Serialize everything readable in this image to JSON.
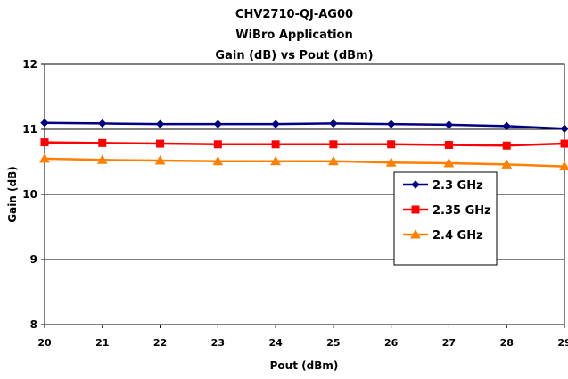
{
  "chart_data": {
    "type": "line",
    "title_lines": [
      "CHV2710-QJ-AG00",
      "WiBro Application",
      "Gain (dB) vs Pout (dBm)"
    ],
    "xlabel": "Pout (dBm)",
    "ylabel": "Gain (dB)",
    "x": [
      20,
      21,
      22,
      23,
      24,
      25,
      26,
      27,
      28,
      29
    ],
    "xlim": [
      20,
      29
    ],
    "ylim": [
      8,
      12
    ],
    "x_ticks": [
      "20",
      "21",
      "22",
      "23",
      "24",
      "25",
      "26",
      "27",
      "28",
      "29"
    ],
    "y_ticks": [
      "8",
      "9",
      "10",
      "11",
      "12"
    ],
    "grid": "horizontal major gridlines",
    "legend_position": "right-center inside plot",
    "series": [
      {
        "name": "2.3 GHz",
        "color": "#000080",
        "marker": "diamond",
        "values": [
          11.1,
          11.09,
          11.08,
          11.08,
          11.08,
          11.09,
          11.08,
          11.07,
          11.05,
          11.01
        ]
      },
      {
        "name": "2.35 GHz",
        "color": "#ff0000",
        "marker": "square",
        "values": [
          10.8,
          10.79,
          10.78,
          10.77,
          10.77,
          10.77,
          10.77,
          10.76,
          10.75,
          10.78
        ]
      },
      {
        "name": "2.4 GHz",
        "color": "#ff8000",
        "marker": "triangle",
        "values": [
          10.55,
          10.53,
          10.52,
          10.51,
          10.51,
          10.51,
          10.49,
          10.48,
          10.46,
          10.43
        ]
      }
    ]
  }
}
